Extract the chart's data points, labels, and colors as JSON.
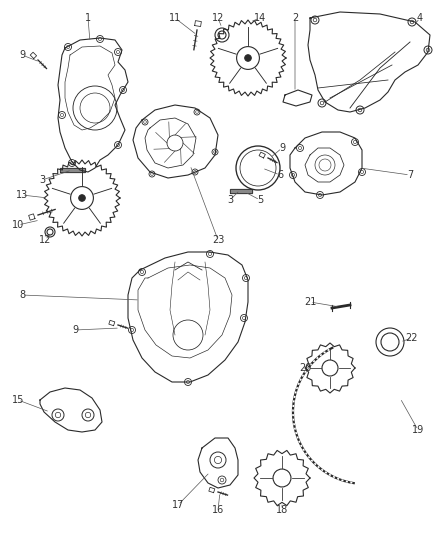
{
  "background_color": "#ffffff",
  "figsize": [
    4.38,
    5.33
  ],
  "dpi": 100,
  "line_color": "#2a2a2a",
  "label_color": "#333333",
  "font_size": 7.0,
  "callout_line_color": "#555555",
  "callout_lw": 0.5
}
